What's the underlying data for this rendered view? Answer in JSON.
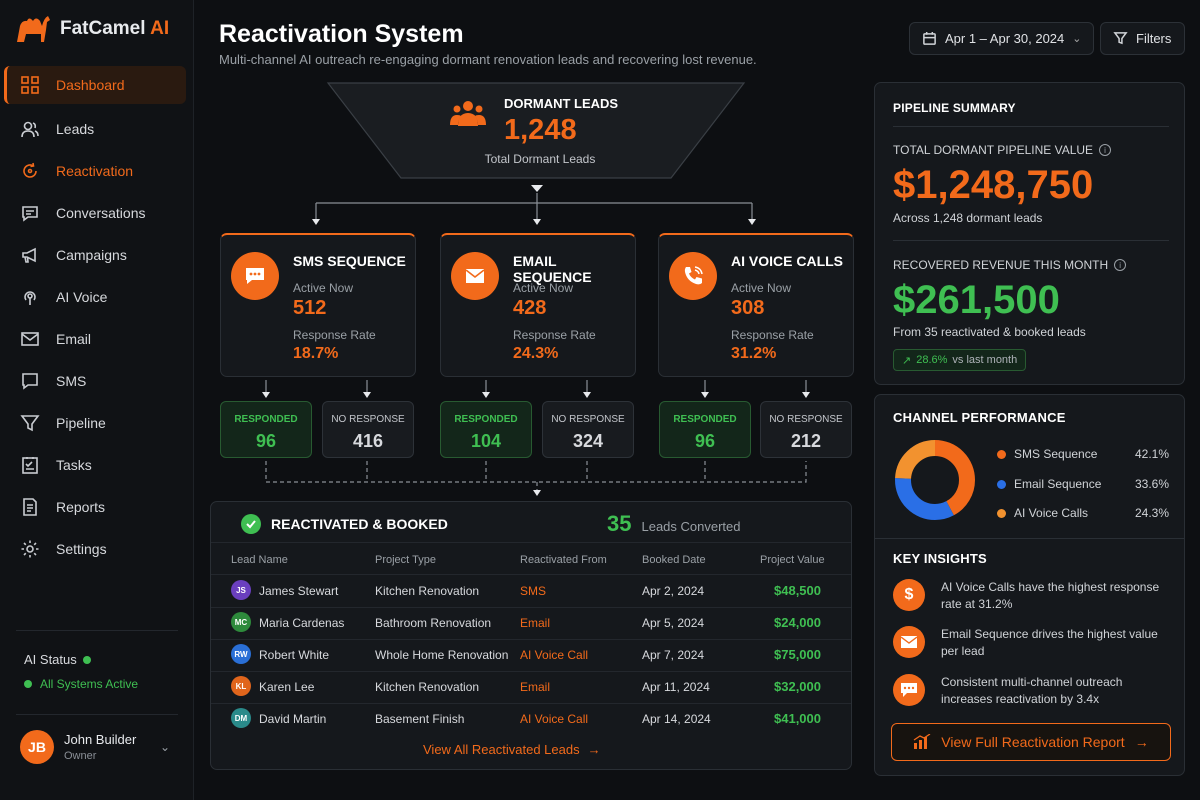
{
  "app": {
    "name_main": "FatCamel",
    "name_accent": "AI"
  },
  "sidebar": {
    "items": [
      {
        "label": "Dashboard",
        "icon": "grid-icon"
      },
      {
        "label": "Leads",
        "icon": "users-icon"
      },
      {
        "label": "Reactivation",
        "icon": "refresh-icon"
      },
      {
        "label": "Conversations",
        "icon": "chat-icon"
      },
      {
        "label": "Campaigns",
        "icon": "megaphone-icon"
      },
      {
        "label": "AI Voice",
        "icon": "voice-icon"
      },
      {
        "label": "Email",
        "icon": "mail-icon"
      },
      {
        "label": "SMS",
        "icon": "sms-icon"
      },
      {
        "label": "Pipeline",
        "icon": "filter-icon"
      },
      {
        "label": "Tasks",
        "icon": "tasks-icon"
      },
      {
        "label": "Reports",
        "icon": "report-icon"
      },
      {
        "label": "Settings",
        "icon": "gear-icon"
      }
    ],
    "ai_status": {
      "title": "AI Status",
      "state": "All Systems Active"
    },
    "user": {
      "initials": "JB",
      "name": "John Builder",
      "role": "Owner"
    }
  },
  "header": {
    "title": "Reactivation System",
    "subtitle": "Multi-channel AI outreach re-engaging dormant renovation leads and recovering lost revenue.",
    "date_range": "Apr 1 – Apr 30, 2024",
    "filters_label": "Filters"
  },
  "funnel": {
    "title": "DORMANT LEADS",
    "value": "1,248",
    "caption": "Total Dormant Leads"
  },
  "channels": [
    {
      "title": "SMS SEQUENCE",
      "active_label": "Active Now",
      "active": "512",
      "rate_label": "Response Rate",
      "rate": "18.7%",
      "responded_label": "RESPONDED",
      "responded": "96",
      "no_response_label": "NO RESPONSE",
      "no_response": "416"
    },
    {
      "title": "EMAIL SEQUENCE",
      "active_label": "Active Now",
      "active": "428",
      "rate_label": "Response Rate",
      "rate": "24.3%",
      "responded_label": "RESPONDED",
      "responded": "104",
      "no_response_label": "NO RESPONSE",
      "no_response": "324"
    },
    {
      "title": "AI VOICE CALLS",
      "active_label": "Active Now",
      "active": "308",
      "rate_label": "Response Rate",
      "rate": "31.2%",
      "responded_label": "RESPONDED",
      "responded": "96",
      "no_response_label": "NO RESPONSE",
      "no_response": "212"
    }
  ],
  "booked": {
    "title": "REACTIVATED & BOOKED",
    "count": "35",
    "count_label": "Leads Converted",
    "columns": [
      "Lead Name",
      "Project Type",
      "Reactivated From",
      "Booked Date",
      "Project Value"
    ],
    "rows": [
      {
        "initials": "JS",
        "color": "#6a3fbf",
        "name": "James Stewart",
        "project": "Kitchen Renovation",
        "source": "SMS",
        "date": "Apr 2, 2024",
        "value": "$48,500"
      },
      {
        "initials": "MC",
        "color": "#2e8a3c",
        "name": "Maria Cardenas",
        "project": "Bathroom Renovation",
        "source": "Email",
        "date": "Apr 5, 2024",
        "value": "$24,000"
      },
      {
        "initials": "RW",
        "color": "#2a6fd6",
        "name": "Robert White",
        "project": "Whole Home Renovation",
        "source": "AI Voice Call",
        "date": "Apr 7, 2024",
        "value": "$75,000"
      },
      {
        "initials": "KL",
        "color": "#e0651c",
        "name": "Karen Lee",
        "project": "Kitchen Renovation",
        "source": "Email",
        "date": "Apr 11, 2024",
        "value": "$32,000"
      },
      {
        "initials": "DM",
        "color": "#2a8a8a",
        "name": "David Martin",
        "project": "Basement Finish",
        "source": "AI Voice Call",
        "date": "Apr 14, 2024",
        "value": "$41,000"
      }
    ],
    "view_all": "View All Reactivated Leads"
  },
  "pipeline": {
    "title": "PIPELINE SUMMARY",
    "dormant_label": "TOTAL DORMANT PIPELINE VALUE",
    "dormant_value": "$1,248,750",
    "dormant_sub": "Across 1,248 dormant leads",
    "recovered_label": "RECOVERED REVENUE THIS MONTH",
    "recovered_value": "$261,500",
    "recovered_sub": "From 35 reactivated & booked leads",
    "change": "28.6%",
    "change_label": "vs last month"
  },
  "channel_performance": {
    "title": "CHANNEL PERFORMANCE",
    "items": [
      {
        "name": "SMS Sequence",
        "pct": "42.1%",
        "value": 42.1,
        "color": "#f26a1b"
      },
      {
        "name": "Email Sequence",
        "pct": "33.6%",
        "value": 33.6,
        "color": "#2a6fe6"
      },
      {
        "name": "AI Voice Calls",
        "pct": "24.3%",
        "value": 24.3,
        "color": "#f2922f"
      }
    ]
  },
  "insights": {
    "title": "KEY INSIGHTS",
    "items": [
      {
        "icon": "dollar-icon",
        "text": "AI Voice Calls have the highest response rate at 31.2%"
      },
      {
        "icon": "mail-icon",
        "text": "Email Sequence drives the highest value per lead"
      },
      {
        "icon": "chat-icon",
        "text": "Consistent multi-channel outreach increases reactivation by 3.4x"
      }
    ],
    "report_button": "View Full Reactivation Report"
  }
}
